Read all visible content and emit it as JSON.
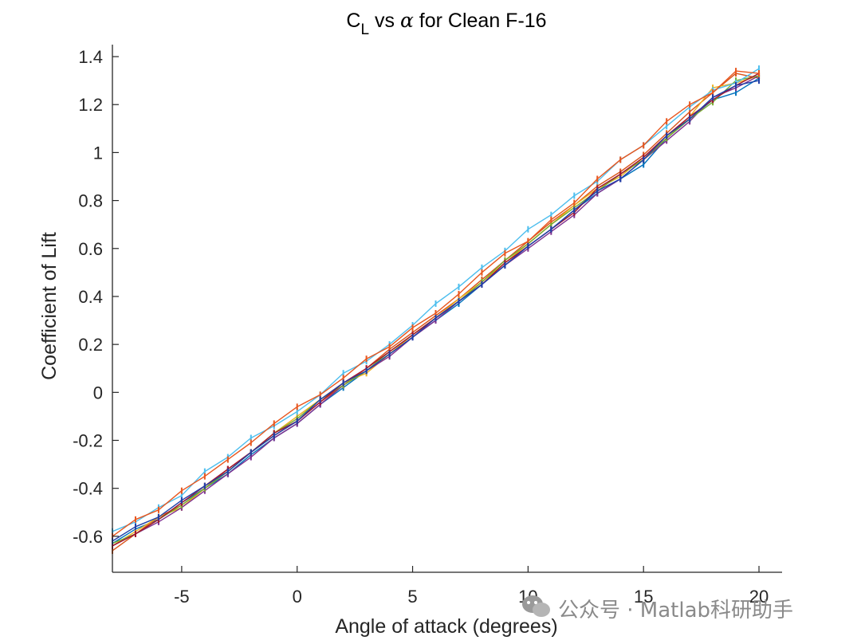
{
  "chart_data": {
    "type": "line",
    "title": {
      "main": "C",
      "sub": "L",
      "rest": " vs ",
      "greek": "α",
      "tail": " for Clean F-16"
    },
    "xlabel": "Angle of attack (degrees)",
    "ylabel": "Coefficient of Lift",
    "xlim": [
      -8,
      21
    ],
    "ylim": [
      -0.75,
      1.45
    ],
    "xticks": [
      -5,
      0,
      5,
      10,
      15,
      20
    ],
    "xtick_labels": [
      "-5",
      "0",
      "5",
      "10",
      "15",
      "20"
    ],
    "yticks": [
      -0.6,
      -0.4,
      -0.2,
      0,
      0.2,
      0.4,
      0.6,
      0.8,
      1,
      1.2,
      1.4
    ],
    "ytick_labels": [
      "-0.6",
      "-0.4",
      "-0.2",
      "0",
      "0.2",
      "0.4",
      "0.6",
      "0.8",
      "1",
      "1.2",
      "1.4"
    ],
    "grid": false,
    "legend": "none",
    "x": [
      -8,
      -7,
      -6,
      -5,
      -4,
      -3,
      -2,
      -1,
      0,
      1,
      2,
      3,
      4,
      5,
      6,
      7,
      8,
      9,
      10,
      11,
      12,
      13,
      14,
      15,
      16,
      17,
      18,
      19,
      20
    ],
    "series": [
      {
        "color": "#0072BD",
        "values": [
          -0.63,
          -0.57,
          -0.53,
          -0.46,
          -0.4,
          -0.34,
          -0.26,
          -0.19,
          -0.13,
          -0.05,
          0.02,
          0.09,
          0.16,
          0.23,
          0.3,
          0.37,
          0.45,
          0.53,
          0.61,
          0.68,
          0.76,
          0.83,
          0.89,
          0.95,
          1.06,
          1.14,
          1.22,
          1.25,
          1.31
        ]
      },
      {
        "color": "#D95319",
        "values": [
          -0.66,
          -0.59,
          -0.52,
          -0.47,
          -0.4,
          -0.32,
          -0.25,
          -0.18,
          -0.12,
          -0.04,
          0.03,
          0.1,
          0.18,
          0.25,
          0.32,
          0.39,
          0.47,
          0.55,
          0.63,
          0.71,
          0.78,
          0.86,
          0.92,
          0.99,
          1.08,
          1.17,
          1.25,
          1.33,
          1.31
        ]
      },
      {
        "color": "#EDB120",
        "values": [
          -0.64,
          -0.58,
          -0.52,
          -0.48,
          -0.4,
          -0.33,
          -0.25,
          -0.17,
          -0.1,
          -0.03,
          0.04,
          0.08,
          0.16,
          0.24,
          0.31,
          0.39,
          0.46,
          0.54,
          0.62,
          0.7,
          0.78,
          0.85,
          0.9,
          0.98,
          1.06,
          1.15,
          1.27,
          1.29,
          1.32
        ]
      },
      {
        "color": "#7E2F8E",
        "values": [
          -0.64,
          -0.59,
          -0.54,
          -0.48,
          -0.41,
          -0.34,
          -0.27,
          -0.19,
          -0.13,
          -0.05,
          0.03,
          0.09,
          0.15,
          0.23,
          0.3,
          0.38,
          0.45,
          0.53,
          0.6,
          0.67,
          0.74,
          0.83,
          0.89,
          0.97,
          1.05,
          1.13,
          1.23,
          1.27,
          1.32
        ]
      },
      {
        "color": "#77AC30",
        "values": [
          -0.63,
          -0.59,
          -0.53,
          -0.47,
          -0.4,
          -0.33,
          -0.25,
          -0.17,
          -0.11,
          -0.03,
          0.03,
          0.09,
          0.17,
          0.24,
          0.31,
          0.38,
          0.46,
          0.55,
          0.62,
          0.7,
          0.77,
          0.84,
          0.91,
          0.97,
          1.06,
          1.14,
          1.21,
          1.3,
          1.32
        ]
      },
      {
        "color": "#4DBEEE",
        "values": [
          -0.58,
          -0.54,
          -0.48,
          -0.43,
          -0.33,
          -0.27,
          -0.19,
          -0.14,
          -0.08,
          -0.01,
          0.08,
          0.13,
          0.2,
          0.28,
          0.37,
          0.44,
          0.52,
          0.59,
          0.68,
          0.74,
          0.82,
          0.88,
          0.97,
          1.03,
          1.11,
          1.19,
          1.26,
          1.29,
          1.35
        ]
      },
      {
        "color": "#A2142F",
        "values": [
          -0.64,
          -0.59,
          -0.53,
          -0.46,
          -0.39,
          -0.32,
          -0.25,
          -0.17,
          -0.12,
          -0.04,
          0.04,
          0.1,
          0.17,
          0.24,
          0.31,
          0.38,
          0.45,
          0.54,
          0.61,
          0.68,
          0.75,
          0.85,
          0.91,
          0.98,
          1.07,
          1.15,
          1.22,
          1.28,
          1.33
        ]
      },
      {
        "color": "#E8561E",
        "values": [
          -0.6,
          -0.53,
          -0.49,
          -0.41,
          -0.35,
          -0.28,
          -0.21,
          -0.13,
          -0.06,
          -0.01,
          0.06,
          0.14,
          0.19,
          0.27,
          0.33,
          0.41,
          0.5,
          0.58,
          0.63,
          0.72,
          0.79,
          0.89,
          0.97,
          1.03,
          1.13,
          1.2,
          1.25,
          1.34,
          1.33
        ]
      },
      {
        "color": "#1F3FA8",
        "values": [
          -0.62,
          -0.56,
          -0.52,
          -0.45,
          -0.39,
          -0.33,
          -0.25,
          -0.18,
          -0.12,
          -0.03,
          0.04,
          0.09,
          0.16,
          0.23,
          0.31,
          0.38,
          0.45,
          0.53,
          0.61,
          0.68,
          0.76,
          0.84,
          0.89,
          0.97,
          1.07,
          1.14,
          1.23,
          1.28,
          1.3
        ]
      }
    ]
  },
  "watermark": {
    "icon": "wechat-icon",
    "text": "公众号 · Matlab科研助手"
  }
}
